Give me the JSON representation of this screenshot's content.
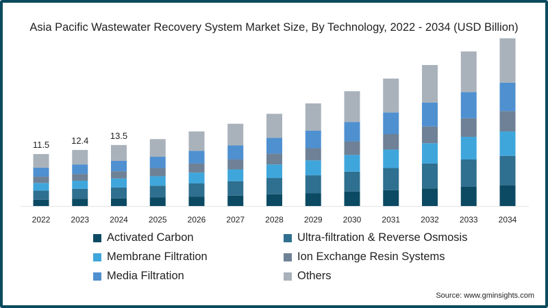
{
  "chart_data": {
    "type": "bar",
    "stacked": true,
    "title": "Asia Pacific Wastewater Recovery System Market Size, By Technology, 2022 - 2034 (USD Billion)",
    "xlabel": "",
    "ylabel": "",
    "ylim": [
      0,
      37.1
    ],
    "grid": false,
    "legend_placement": "bottom",
    "categories": [
      "2022",
      "2023",
      "2024",
      "2025",
      "2026",
      "2027",
      "2028",
      "2029",
      "2030",
      "2031",
      "2032",
      "2033",
      "2034"
    ],
    "series": [
      {
        "name": "Activated Carbon",
        "color": "#0c4a63",
        "values": [
          1.4,
          1.6,
          1.7,
          1.9,
          2.1,
          2.3,
          2.6,
          2.8,
          3.2,
          3.5,
          3.9,
          4.3,
          4.6
        ]
      },
      {
        "name": "Ultra-filtration & Reverse Osmosis",
        "color": "#2f6f8f",
        "values": [
          2.0,
          2.2,
          2.4,
          2.6,
          2.9,
          3.2,
          3.6,
          4.0,
          4.4,
          4.9,
          5.5,
          6.0,
          6.5
        ]
      },
      {
        "name": "Membrane Filtration",
        "color": "#3fa6dc",
        "values": [
          1.7,
          1.8,
          2.0,
          2.1,
          2.4,
          2.6,
          3.0,
          3.3,
          3.7,
          4.1,
          4.5,
          5.0,
          5.4
        ]
      },
      {
        "name": "Ion Exchange Resin Systems",
        "color": "#6e8196",
        "values": [
          1.4,
          1.5,
          1.6,
          1.8,
          2.0,
          2.2,
          2.4,
          2.7,
          3.0,
          3.4,
          3.7,
          4.1,
          4.5
        ]
      },
      {
        "name": "Media Filtration",
        "color": "#4f90d0",
        "values": [
          2.0,
          2.1,
          2.3,
          2.5,
          2.8,
          3.1,
          3.5,
          3.9,
          4.3,
          4.8,
          5.3,
          5.8,
          6.3
        ]
      },
      {
        "name": "Others",
        "color": "#a9b2bb",
        "values": [
          3.0,
          3.2,
          3.5,
          3.9,
          4.3,
          4.8,
          5.3,
          6.0,
          6.8,
          7.5,
          8.3,
          9.0,
          9.8
        ]
      }
    ],
    "data_labels": [
      {
        "category": "2022",
        "text": "11.5"
      },
      {
        "category": "2023",
        "text": "12.4"
      },
      {
        "category": "2024",
        "text": "13.5"
      }
    ]
  },
  "source": "Source: www.gminsights.com"
}
